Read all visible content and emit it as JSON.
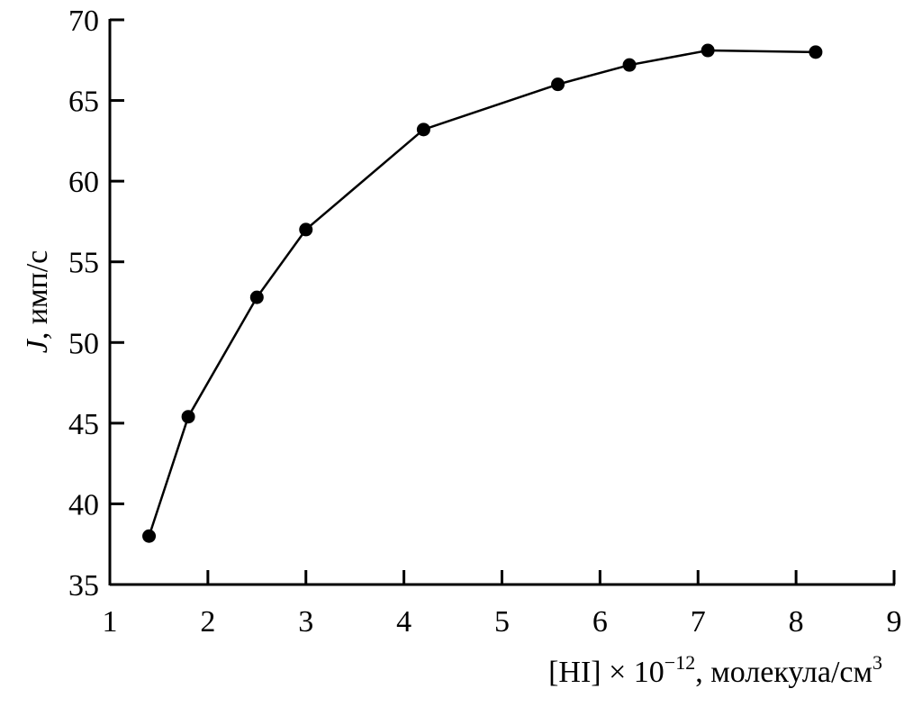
{
  "chart_data": {
    "type": "line",
    "title": "",
    "xlabel": "[HI] × 10⁻¹², молекула/см³",
    "xlabel_parts": {
      "main": "[HI] × 10",
      "exp": "−12",
      "rest": ", молекула/см",
      "exp2": "3"
    },
    "ylabel": "J, имп/с",
    "ylabel_parts": {
      "symbol": "J",
      "rest": ", имп/с"
    },
    "xlim": [
      1,
      9
    ],
    "ylim": [
      35,
      70
    ],
    "xticks": [
      1,
      2,
      3,
      4,
      5,
      6,
      7,
      8,
      9
    ],
    "yticks": [
      35,
      40,
      45,
      50,
      55,
      60,
      65,
      70
    ],
    "grid": false,
    "marker": "filled-circle",
    "color": "#000000",
    "series": [
      {
        "x": [
          1.4,
          1.8,
          2.5,
          3.0,
          4.2,
          5.57,
          6.3,
          7.1,
          8.2
        ],
        "y": [
          38.0,
          45.4,
          52.8,
          57.0,
          63.2,
          66.0,
          67.2,
          68.1,
          68.0
        ]
      }
    ]
  }
}
